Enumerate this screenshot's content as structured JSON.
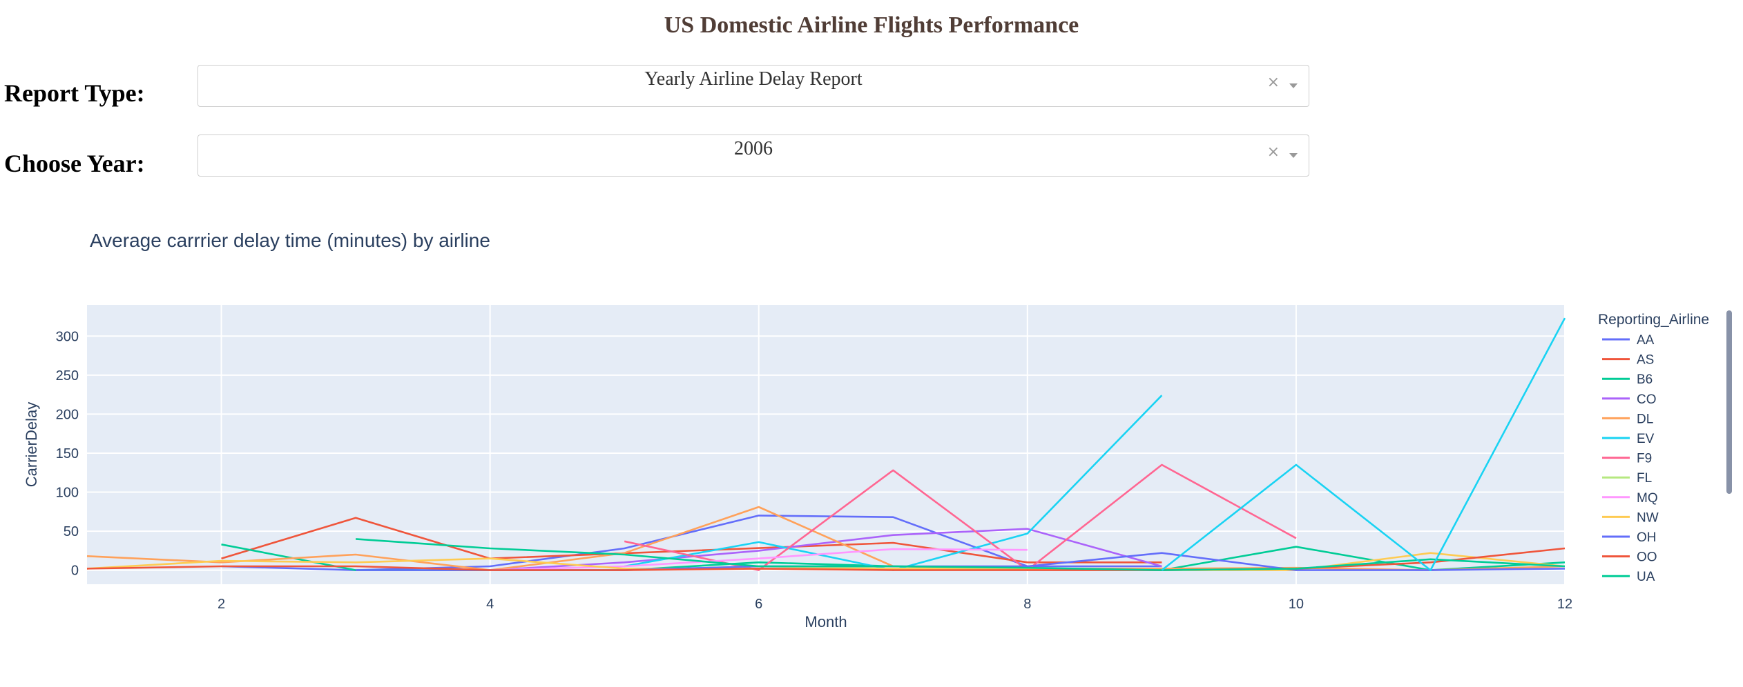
{
  "header": {
    "title": "US Domestic Airline Flights Performance"
  },
  "form": {
    "report_type_label": "Report Type:",
    "report_type_value": "Yearly Airline Delay Report",
    "year_label": "Choose Year:",
    "year_value": "2006",
    "clear_glyph": "×"
  },
  "colors": {
    "title": "#503d36",
    "plot_bg": "#e5ecf6",
    "text": "#2a3f5f"
  },
  "chart_data": {
    "type": "line",
    "title": "Average carrrier delay time (minutes) by airline",
    "xlabel": "Month",
    "ylabel": "CarrierDelay",
    "xlim": [
      1,
      12
    ],
    "ylim": [
      -18,
      340
    ],
    "x_ticks": [
      2,
      4,
      6,
      8,
      10,
      12
    ],
    "y_ticks": [
      0,
      50,
      100,
      150,
      200,
      250,
      300
    ],
    "grid": true,
    "legend_title": "Reporting_Airline",
    "legend_placement": "right",
    "series": [
      {
        "name": "AA",
        "color": "#636efa",
        "points": [
          [
            2,
            5
          ],
          [
            3,
            0
          ],
          [
            4,
            5
          ],
          [
            5,
            28
          ],
          [
            6,
            70
          ],
          [
            7,
            68
          ],
          [
            8,
            5
          ],
          [
            9,
            5
          ]
        ]
      },
      {
        "name": "AS",
        "color": "#EF553B",
        "points": [
          [
            2,
            15
          ],
          [
            3,
            67
          ],
          [
            4,
            15
          ],
          [
            7,
            35
          ],
          [
            8,
            10
          ],
          [
            9,
            10
          ]
        ]
      },
      {
        "name": "B6",
        "color": "#00cc96",
        "points": [
          [
            2,
            33
          ],
          [
            3,
            0
          ],
          [
            4,
            0
          ],
          [
            5,
            0
          ],
          [
            6,
            10
          ],
          [
            7,
            5
          ],
          [
            8,
            2
          ],
          [
            9,
            0
          ],
          [
            10,
            30
          ],
          [
            11,
            0
          ],
          [
            12,
            10
          ]
        ]
      },
      {
        "name": "CO",
        "color": "#ab63fa",
        "points": [
          [
            4,
            0
          ],
          [
            5,
            10
          ],
          [
            6,
            25
          ],
          [
            7,
            45
          ],
          [
            8,
            53
          ],
          [
            9,
            5
          ]
        ]
      },
      {
        "name": "DL",
        "color": "#FFA15A",
        "points": [
          [
            1,
            18
          ],
          [
            2,
            10
          ],
          [
            3,
            20
          ],
          [
            4,
            0
          ],
          [
            5,
            22
          ],
          [
            6,
            81
          ],
          [
            7,
            5
          ],
          [
            8,
            2
          ],
          [
            9,
            2
          ],
          [
            10,
            3
          ],
          [
            11,
            0
          ],
          [
            12,
            5
          ]
        ]
      },
      {
        "name": "EV",
        "color": "#19d3f3",
        "points": [
          [
            5,
            5
          ],
          [
            6,
            36
          ],
          [
            7,
            0
          ],
          [
            8,
            47
          ],
          [
            9,
            224
          ]
        ]
      },
      {
        "name": "F9",
        "color": "#FF6692",
        "points": [
          [
            5,
            37
          ],
          [
            6,
            0
          ],
          [
            7,
            128
          ],
          [
            8,
            0
          ],
          [
            9,
            135
          ],
          [
            10,
            41
          ]
        ]
      },
      {
        "name": "FL",
        "color": "#B6E880",
        "points": [
          [
            5,
            0
          ],
          [
            6,
            5
          ],
          [
            7,
            2
          ],
          [
            8,
            2
          ]
        ]
      },
      {
        "name": "MQ",
        "color": "#FF97FF",
        "points": [
          [
            4,
            0
          ],
          [
            5,
            5
          ],
          [
            6,
            15
          ],
          [
            7,
            27
          ],
          [
            8,
            26
          ]
        ]
      },
      {
        "name": "NW",
        "color": "#FECB52",
        "points": [
          [
            1,
            2
          ],
          [
            2,
            12
          ],
          [
            3,
            10
          ],
          [
            4,
            15
          ],
          [
            5,
            2
          ],
          [
            6,
            2
          ],
          [
            7,
            2
          ],
          [
            8,
            2
          ],
          [
            9,
            0
          ],
          [
            10,
            0
          ],
          [
            11,
            22
          ],
          [
            12,
            5
          ]
        ]
      },
      {
        "name": "OH",
        "color": "#636efa",
        "points": [
          [
            3,
            0
          ],
          [
            4,
            0
          ],
          [
            5,
            0
          ],
          [
            6,
            5
          ],
          [
            7,
            5
          ],
          [
            8,
            5
          ],
          [
            9,
            22
          ],
          [
            10,
            0
          ],
          [
            11,
            0
          ],
          [
            12,
            2
          ]
        ]
      },
      {
        "name": "OO",
        "color": "#EF553B",
        "points": [
          [
            1,
            2
          ],
          [
            2,
            5
          ],
          [
            3,
            5
          ],
          [
            4,
            0
          ],
          [
            5,
            0
          ],
          [
            6,
            2
          ],
          [
            7,
            0
          ],
          [
            8,
            0
          ],
          [
            9,
            0
          ],
          [
            10,
            2
          ],
          [
            11,
            10
          ],
          [
            12,
            28
          ]
        ]
      },
      {
        "name": "UA",
        "color": "#00cc96",
        "points": [
          [
            3,
            40
          ],
          [
            4,
            28
          ],
          [
            5,
            20
          ],
          [
            6,
            5
          ],
          [
            7,
            5
          ],
          [
            8,
            3
          ],
          [
            9,
            0
          ],
          [
            10,
            2
          ],
          [
            11,
            14
          ],
          [
            12,
            5
          ]
        ]
      },
      {
        "name": "EV",
        "color": "#19d3f3",
        "legend": false,
        "points": [
          [
            9,
            0
          ],
          [
            10,
            135
          ],
          [
            11,
            0
          ],
          [
            12,
            323
          ]
        ]
      }
    ]
  }
}
